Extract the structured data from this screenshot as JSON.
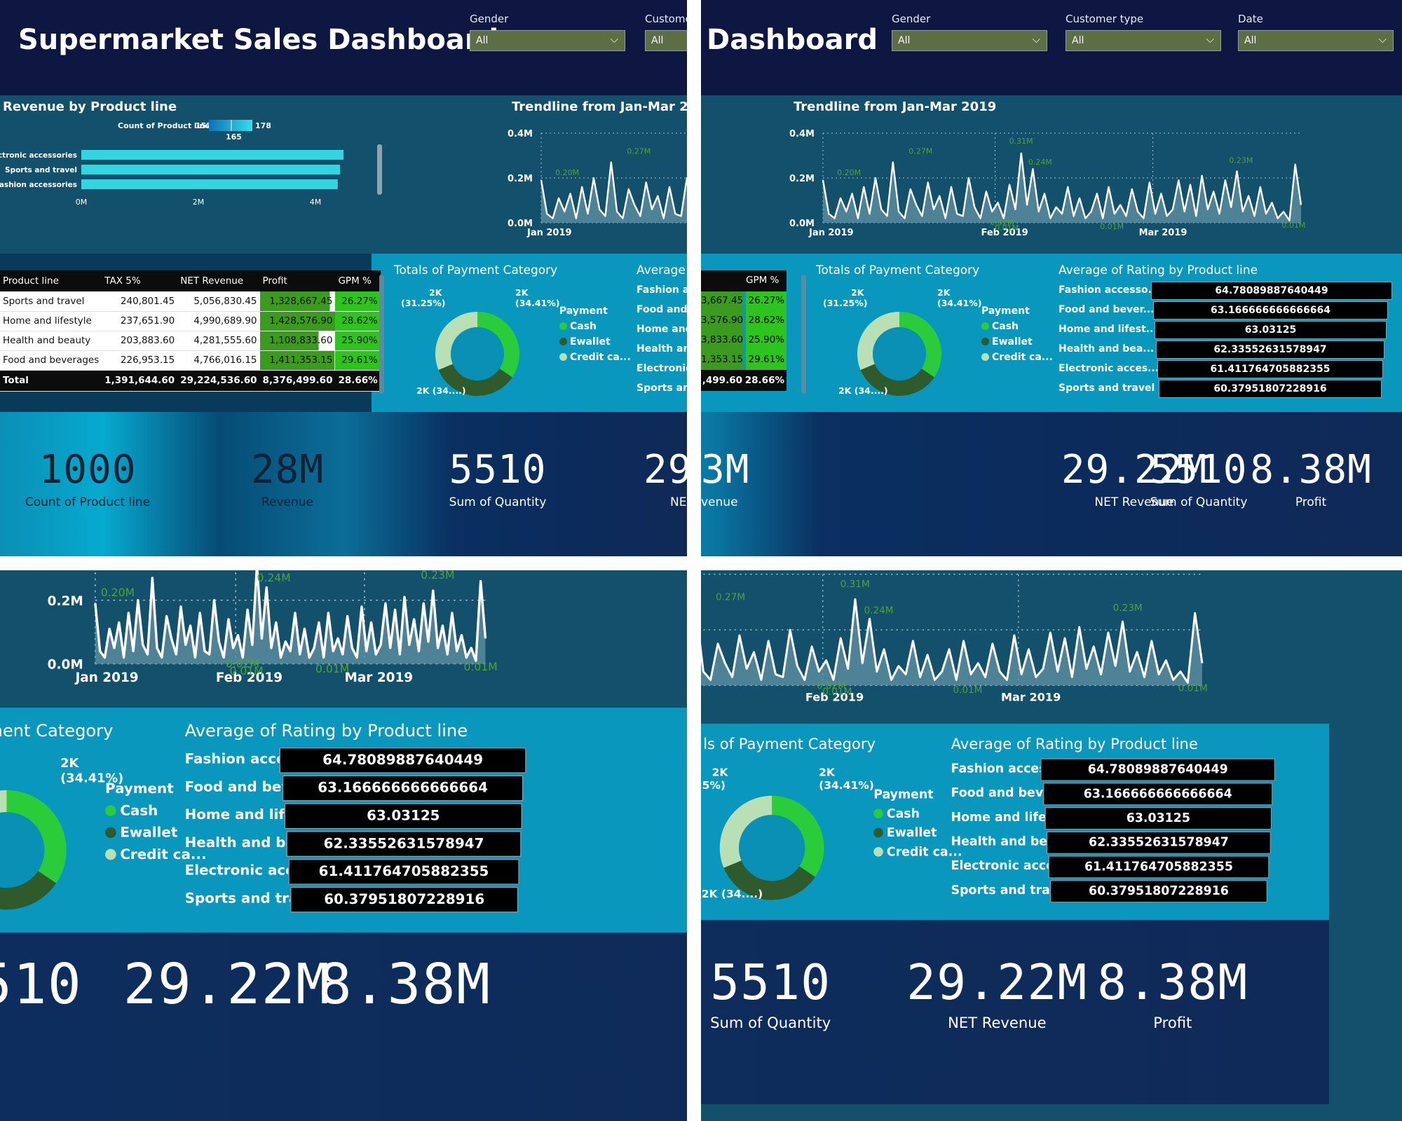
{
  "title_full": "Supermarket Sales Dashboard",
  "title_short": "Dashboard",
  "filters": [
    {
      "label": "Gender",
      "value": "All"
    },
    {
      "label": "Customer type",
      "value": "All"
    },
    {
      "label": "Date",
      "value": "All"
    }
  ],
  "filter_label_cut": "Custome",
  "revenue": {
    "title": "Revenue by Product line",
    "legend_label": "Count of Product line",
    "legend_min": "152",
    "legend_max": "178",
    "legend_mid": "165",
    "categories": [
      "Electronic accessories",
      "Sports and travel",
      "Fashion accessories"
    ],
    "values_m": [
      4.48,
      4.42,
      4.38
    ],
    "ticks": [
      "0M",
      "2M",
      "4M"
    ]
  },
  "trend": {
    "title": "Trendline from Jan-Mar 2019",
    "y_ticks": [
      "0.4M",
      "0.2M",
      "0.0M"
    ],
    "x_ticks": [
      "Jan 2019",
      "Feb 2019",
      "Mar 2019"
    ],
    "annotations": [
      "0.20M",
      "0.27M",
      "0.31M",
      "0.24M",
      "0.02M",
      "0.01M",
      "0.01M",
      "0.23M",
      "0.01M"
    ],
    "annotation_values": [
      0.2,
      0.27,
      0.31,
      0.24,
      0.02,
      0.01,
      0.01,
      0.23,
      0.01
    ],
    "ylim": [
      0,
      0.4
    ],
    "values": [
      0.19,
      0.04,
      0.02,
      0.11,
      0.05,
      0.13,
      0.02,
      0.16,
      0.04,
      0.2,
      0.06,
      0.03,
      0.27,
      0.05,
      0.02,
      0.15,
      0.08,
      0.03,
      0.18,
      0.06,
      0.12,
      0.02,
      0.16,
      0.04,
      0.03,
      0.2,
      0.07,
      0.02,
      0.14,
      0.05,
      0.09,
      0.02,
      0.17,
      0.06,
      0.31,
      0.08,
      0.24,
      0.05,
      0.13,
      0.02,
      0.07,
      0.04,
      0.16,
      0.03,
      0.11,
      0.02,
      0.05,
      0.13,
      0.02,
      0.16,
      0.04,
      0.08,
      0.03,
      0.15,
      0.05,
      0.02,
      0.18,
      0.04,
      0.13,
      0.03,
      0.06,
      0.19,
      0.05,
      0.17,
      0.03,
      0.21,
      0.06,
      0.14,
      0.04,
      0.19,
      0.07,
      0.23,
      0.05,
      0.12,
      0.03,
      0.16,
      0.04,
      0.09,
      0.02,
      0.05,
      0.01,
      0.26,
      0.08
    ]
  },
  "table": {
    "headers": [
      "Product line",
      "TAX 5%",
      "NET Revenue",
      "Profit",
      "GPM %"
    ],
    "rows": [
      {
        "name": "Sports and travel",
        "tax": "240,801.45",
        "net": "5,056,830.45",
        "profit": "1,328,667.45",
        "gpm": "26.27%"
      },
      {
        "name": "Home and lifestyle",
        "tax": "237,651.90",
        "net": "4,990,689.90",
        "profit": "1,428,576.90",
        "gpm": "28.62%"
      },
      {
        "name": "Health and beauty",
        "tax": "203,883.60",
        "net": "4,281,555.60",
        "profit": "1,108,833.60",
        "gpm": "25.90%"
      },
      {
        "name": "Food and beverages",
        "tax": "226,953.15",
        "net": "4,766,016.15",
        "profit": "1,411,353.15",
        "gpm": "29.61%"
      }
    ],
    "profit_fill": [
      0.93,
      1.0,
      0.78,
      0.99
    ],
    "total": {
      "label": "Total",
      "tax": "1,391,644.60",
      "net": "29,224,536.60",
      "profit": "8,376,499.60",
      "gpm": "28.66%"
    },
    "cut_profit": [
      "3,667.45",
      "3,576.90",
      "3,833.60",
      "1,353.15"
    ],
    "cut_total": ",499.60"
  },
  "payment": {
    "title": "Totals of Payment Category",
    "title_cut1": "ls of Payment Category",
    "title_cut2": "ayment Category",
    "legend_title": "Payment",
    "items": [
      "Cash",
      "Ewallet",
      "Credit ca..."
    ],
    "shares": [
      34.41,
      34.34,
      31.25
    ],
    "colors": [
      "#2bcc3a",
      "#2f5a2b",
      "#b8e0b4"
    ],
    "label_a": "2K",
    "label_a_pct": "(34.41%)",
    "label_b": "2K",
    "label_b_pct": "(31.25%)",
    "label_c": "2K (34....)",
    "label_b_pct_cut": "25%)",
    "label_c_cut": "2K (34....)"
  },
  "rating": {
    "title": "Average of Rating by Product line",
    "title_cut": "Average",
    "labels": [
      "Fashion accesso...",
      "Food and bever...",
      "Home and lifest...",
      "Health and bea...",
      "Electronic acces...",
      "Sports and travel"
    ],
    "values": [
      "64.78089887640449",
      "63.166666666666664",
      "63.03125",
      "62.33552631578947",
      "61.411764705882355",
      "60.37951807228916"
    ],
    "labels_cut": [
      "Fashion ac",
      "Food and",
      "Home and",
      "Health and",
      "Electronic",
      "Sports and"
    ]
  },
  "kpis": {
    "count": {
      "value": "1000",
      "label": "Count of Product line"
    },
    "revenue": {
      "value": "28M",
      "label": "Revenue"
    },
    "quantity": {
      "value": "5510",
      "label": "Sum of Quantity"
    },
    "net": {
      "value": "29.22M",
      "label": "NET Revenue"
    },
    "profit": {
      "value": "8.38M",
      "label": "Profit"
    },
    "net_cut": "29",
    "net_label_cut": "NE",
    "rev_cut": "3M",
    "rev_label_cut": "venue"
  }
}
